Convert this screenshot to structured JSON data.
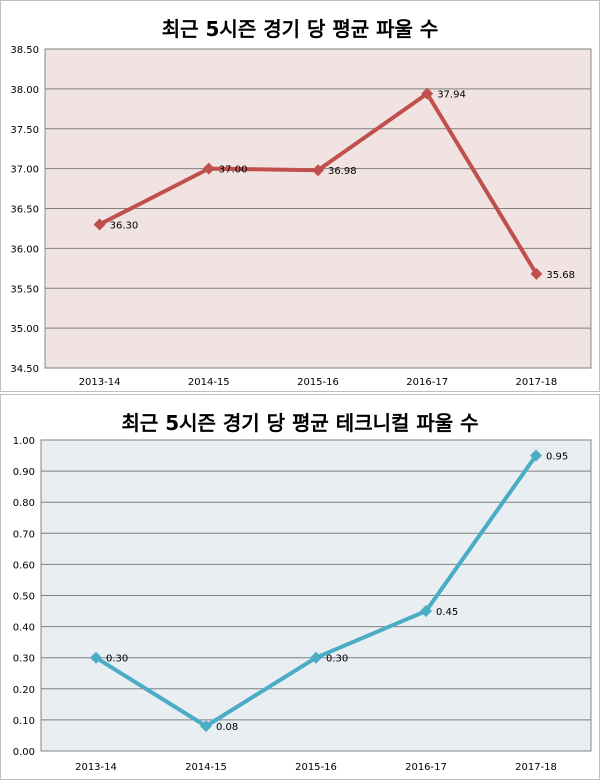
{
  "chart_data": [
    {
      "type": "line",
      "title": "최근 5시즌 경기 당 평균 파울 수",
      "categories": [
        "2013-14",
        "2014-15",
        "2015-16",
        "2016-17",
        "2017-18"
      ],
      "series": [
        {
          "values": [
            36.3,
            37.0,
            36.98,
            37.94,
            35.68
          ]
        }
      ],
      "data_labels": [
        "36.30",
        "37.00",
        "36.98",
        "37.94",
        "35.68"
      ],
      "ylim": [
        34.5,
        38.5
      ],
      "yticks": [
        "34.50",
        "35.00",
        "35.50",
        "36.00",
        "36.50",
        "37.00",
        "37.50",
        "38.00",
        "38.50"
      ],
      "grid": true,
      "line_color": "#c0504d",
      "plot_bg": "#f2e3e3"
    },
    {
      "type": "line",
      "title": "최근 5시즌 경기 당 평균 테크니컬 파울 수",
      "categories": [
        "2013-14",
        "2014-15",
        "2015-16",
        "2016-17",
        "2017-18"
      ],
      "series": [
        {
          "values": [
            0.3,
            0.08,
            0.3,
            0.45,
            0.95
          ]
        }
      ],
      "data_labels": [
        "0.30",
        "0.08",
        "0.30",
        "0.45",
        "0.95"
      ],
      "ylim": [
        0.0,
        1.0
      ],
      "yticks": [
        "0.00",
        "0.10",
        "0.20",
        "0.30",
        "0.40",
        "0.50",
        "0.60",
        "0.70",
        "0.80",
        "0.90",
        "1.00"
      ],
      "grid": true,
      "line_color": "#4bacc6",
      "plot_bg": "#e8eef1"
    }
  ]
}
